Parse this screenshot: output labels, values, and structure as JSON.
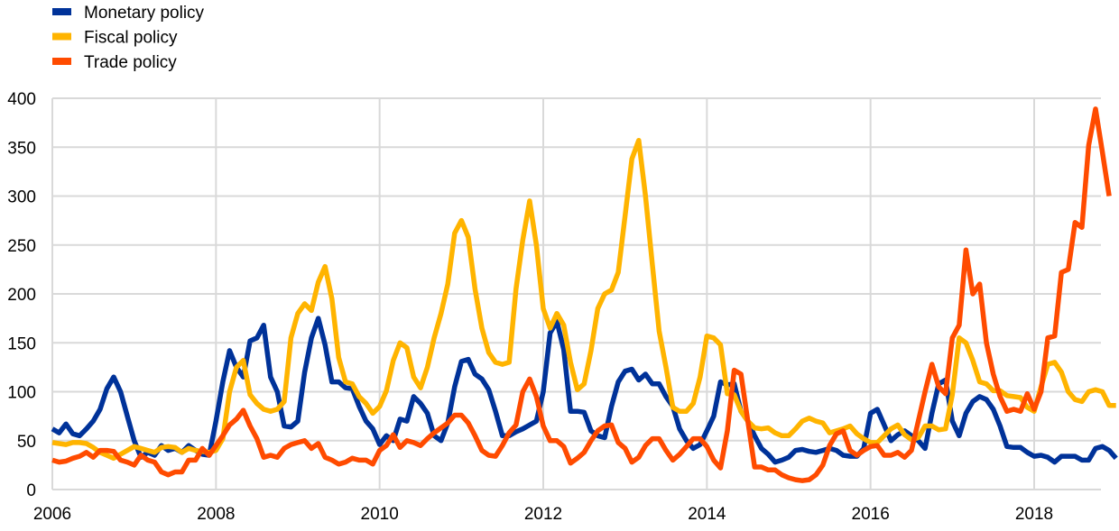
{
  "chart_data": {
    "type": "line",
    "title": "",
    "xlabel": "",
    "ylabel": "",
    "x_start": "2006-01",
    "x_frequency": "monthly",
    "xlim": [
      2006,
      2018.83
    ],
    "ylim": [
      0,
      400
    ],
    "grid": true,
    "legend_position": "top-left",
    "x_ticks": [
      "2006",
      "2008",
      "2010",
      "2012",
      "2014",
      "2016",
      "2018"
    ],
    "y_ticks": [
      "0",
      "50",
      "100",
      "150",
      "200",
      "250",
      "300",
      "350",
      "400"
    ],
    "series": [
      {
        "name": "Monetary policy",
        "color": "#003299",
        "values": [
          62,
          58,
          67,
          57,
          55,
          62,
          70,
          82,
          103,
          115,
          100,
          75,
          50,
          33,
          38,
          35,
          45,
          40,
          42,
          38,
          45,
          40,
          36,
          35,
          70,
          110,
          142,
          125,
          115,
          152,
          155,
          168,
          115,
          100,
          65,
          64,
          70,
          120,
          155,
          175,
          148,
          110,
          110,
          104,
          103,
          85,
          70,
          62,
          46,
          55,
          50,
          72,
          70,
          95,
          88,
          78,
          55,
          50,
          68,
          105,
          131,
          133,
          118,
          113,
          102,
          80,
          55,
          55,
          59,
          62,
          66,
          70,
          100,
          160,
          172,
          143,
          80,
          80,
          79,
          60,
          55,
          53,
          85,
          110,
          121,
          123,
          112,
          118,
          108,
          108,
          95,
          85,
          62,
          50,
          42,
          46,
          60,
          75,
          110,
          107,
          108,
          80,
          70,
          55,
          42,
          36,
          28,
          30,
          33,
          40,
          41,
          39,
          38,
          40,
          42,
          40,
          35,
          34,
          34,
          42,
          78,
          82,
          66,
          50,
          56,
          60,
          55,
          50,
          42,
          78,
          108,
          112,
          70,
          55,
          78,
          90,
          95,
          92,
          82,
          65,
          44,
          43,
          43,
          38,
          34,
          35,
          33,
          28,
          34,
          34,
          34,
          30,
          30,
          42,
          44,
          40,
          32
        ]
      },
      {
        "name": "Fiscal policy",
        "color": "#FFB400",
        "values": [
          48,
          47,
          46,
          48,
          48,
          47,
          43,
          38,
          35,
          32,
          36,
          40,
          44,
          42,
          40,
          38,
          43,
          44,
          43,
          38,
          42,
          40,
          39,
          38,
          40,
          52,
          100,
          125,
          132,
          97,
          88,
          82,
          80,
          82,
          90,
          155,
          180,
          190,
          183,
          212,
          228,
          195,
          135,
          110,
          108,
          95,
          88,
          78,
          85,
          101,
          132,
          150,
          145,
          115,
          104,
          125,
          155,
          180,
          210,
          262,
          275,
          258,
          205,
          165,
          140,
          130,
          128,
          130,
          205,
          255,
          295,
          250,
          185,
          165,
          180,
          168,
          130,
          102,
          108,
          142,
          185,
          200,
          204,
          222,
          280,
          338,
          357,
          300,
          230,
          162,
          125,
          84,
          80,
          80,
          88,
          115,
          157,
          155,
          148,
          98,
          97,
          80,
          70,
          63,
          62,
          63,
          58,
          55,
          55,
          62,
          70,
          73,
          70,
          68,
          58,
          60,
          62,
          65,
          57,
          52,
          48,
          48,
          55,
          62,
          66,
          56,
          51,
          53,
          65,
          65,
          61,
          62,
          97,
          155,
          150,
          132,
          110,
          108,
          101,
          101,
          96,
          95,
          94,
          84,
          80,
          105,
          128,
          130,
          120,
          100,
          92,
          90,
          100,
          102,
          100,
          86,
          86
        ]
      },
      {
        "name": "Trade policy",
        "color": "#FF4B00",
        "values": [
          30,
          28,
          29,
          32,
          34,
          38,
          33,
          40,
          40,
          39,
          30,
          28,
          25,
          35,
          30,
          28,
          18,
          15,
          18,
          18,
          30,
          30,
          42,
          35,
          45,
          55,
          66,
          72,
          81,
          65,
          52,
          33,
          35,
          33,
          42,
          46,
          48,
          50,
          42,
          47,
          33,
          30,
          26,
          28,
          32,
          30,
          30,
          26,
          40,
          45,
          56,
          43,
          50,
          48,
          45,
          52,
          58,
          63,
          68,
          76,
          76,
          68,
          55,
          40,
          35,
          34,
          45,
          58,
          66,
          100,
          113,
          95,
          65,
          50,
          50,
          44,
          27,
          32,
          38,
          50,
          60,
          65,
          66,
          48,
          42,
          28,
          33,
          45,
          52,
          52,
          40,
          30,
          36,
          44,
          52,
          52,
          44,
          30,
          22,
          60,
          122,
          118,
          70,
          23,
          23,
          20,
          20,
          15,
          12,
          10,
          9,
          10,
          15,
          25,
          45,
          57,
          60,
          40,
          35,
          40,
          44,
          45,
          35,
          35,
          38,
          33,
          40,
          70,
          100,
          128,
          105,
          98,
          155,
          168,
          245,
          200,
          210,
          150,
          118,
          95,
          80,
          82,
          80,
          98,
          82,
          100,
          155,
          157,
          222,
          225,
          273,
          268,
          352,
          389,
          345,
          300
        ]
      }
    ]
  }
}
